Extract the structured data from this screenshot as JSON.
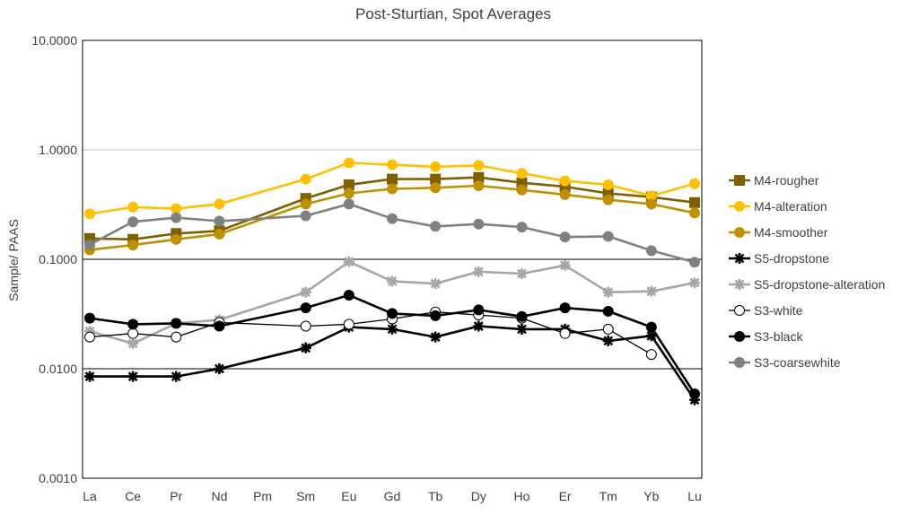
{
  "chart_data": {
    "type": "line",
    "title": "Post-Sturtian, Spot Averages",
    "xlabel": "",
    "ylabel": "Sample/ PAAS",
    "y_scale": "log",
    "ylim": [
      0.001,
      10
    ],
    "y_ticks": [
      "10.0000",
      "1.0000",
      "0.1000",
      "0.0100",
      "0.0010"
    ],
    "y_tick_values": [
      10,
      1,
      0.1,
      0.01,
      0.001
    ],
    "grid": "horizontal major gridlines",
    "legend_position": "right",
    "categories": [
      "La",
      "Ce",
      "Pr",
      "Nd",
      "Pm",
      "Sm",
      "Eu",
      "Gd",
      "Tb",
      "Dy",
      "Ho",
      "Er",
      "Tm",
      "Yb",
      "Lu"
    ],
    "series": [
      {
        "name": "M4-rougher",
        "color": "#7f6000",
        "marker": "square",
        "values": [
          0.155,
          0.152,
          0.172,
          0.182,
          null,
          0.36,
          0.48,
          0.54,
          0.54,
          0.56,
          0.5,
          0.46,
          0.4,
          0.37,
          0.33
        ]
      },
      {
        "name": "M4-alteration",
        "color": "#ffc000",
        "marker": "circle",
        "values": [
          0.26,
          0.3,
          0.29,
          0.32,
          null,
          0.54,
          0.76,
          0.73,
          0.7,
          0.72,
          0.61,
          0.52,
          0.48,
          0.38,
          0.49
        ]
      },
      {
        "name": "M4-smoother",
        "color": "#bf9000",
        "marker": "circle",
        "values": [
          0.122,
          0.135,
          0.152,
          0.17,
          null,
          0.32,
          0.4,
          0.44,
          0.45,
          0.47,
          0.43,
          0.39,
          0.35,
          0.32,
          0.265
        ]
      },
      {
        "name": "S5-dropstone",
        "color": "#000000",
        "marker": "star",
        "values": [
          0.0085,
          0.0085,
          0.0085,
          0.01,
          null,
          0.0155,
          0.024,
          0.023,
          0.0195,
          0.0245,
          0.023,
          0.023,
          0.018,
          0.02,
          0.0052
        ]
      },
      {
        "name": "S5-dropstone-alteration",
        "color": "#a6a6a6",
        "marker": "star",
        "values": [
          0.022,
          0.017,
          0.026,
          0.028,
          null,
          0.05,
          0.095,
          0.063,
          0.06,
          0.077,
          0.074,
          0.088,
          0.05,
          0.051,
          0.061
        ]
      },
      {
        "name": "S3-white",
        "color": "#000000",
        "marker": "hollow-circle",
        "values": [
          0.0195,
          0.021,
          0.0195,
          0.0265,
          null,
          0.0245,
          0.0255,
          0.0285,
          0.033,
          0.031,
          0.029,
          0.021,
          0.023,
          0.0135,
          null
        ]
      },
      {
        "name": "S3-black",
        "color": "#000000",
        "marker": "circle",
        "values": [
          0.029,
          0.0255,
          0.026,
          0.0245,
          null,
          0.036,
          0.047,
          0.032,
          0.0305,
          0.0345,
          0.03,
          0.036,
          0.0335,
          0.024,
          0.0059
        ]
      },
      {
        "name": "S3-coarsewhite",
        "color": "#808080",
        "marker": "circle",
        "values": [
          0.136,
          0.22,
          0.24,
          0.223,
          null,
          0.25,
          0.32,
          0.235,
          0.2,
          0.21,
          0.197,
          0.16,
          0.162,
          0.12,
          0.094
        ]
      }
    ]
  }
}
